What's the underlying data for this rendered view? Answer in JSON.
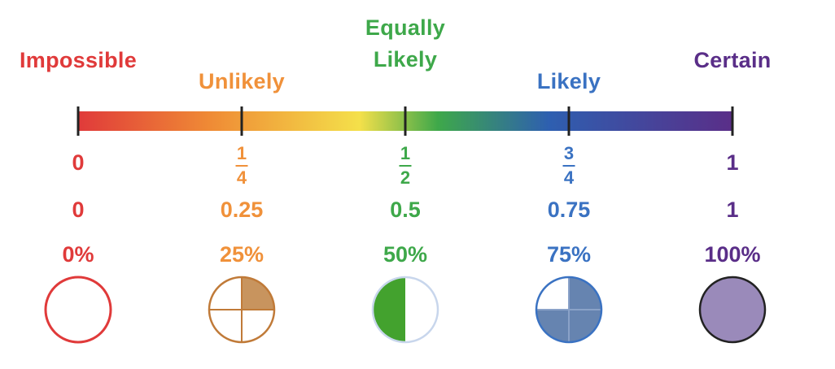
{
  "points": [
    {
      "value": 0,
      "label_lines": [
        "Impossible"
      ],
      "fraction": "0",
      "fraction_num": "",
      "fraction_den": "",
      "decimal": "0",
      "percent": "0%",
      "fill_fraction": 0,
      "color": "#e03a3a",
      "fill_color": "#ffffff"
    },
    {
      "value": 0.25,
      "label_lines": [
        "Unlikely"
      ],
      "fraction": "",
      "fraction_num": "1",
      "fraction_den": "4",
      "decimal": "0.25",
      "percent": "25%",
      "fill_fraction": 0.25,
      "color": "#f0913a",
      "fill_color": "#c8945e"
    },
    {
      "value": 0.5,
      "label_lines": [
        "Equally",
        "Likely"
      ],
      "fraction": "",
      "fraction_num": "1",
      "fraction_den": "2",
      "decimal": "0.5",
      "percent": "50%",
      "fill_fraction": 0.5,
      "color": "#3ea84a",
      "fill_color": "#43a22e"
    },
    {
      "value": 0.75,
      "label_lines": [
        "Likely"
      ],
      "fraction": "",
      "fraction_num": "3",
      "fraction_den": "4",
      "decimal": "0.75",
      "percent": "75%",
      "fill_fraction": 0.75,
      "color": "#3a72c2",
      "fill_color": "#6684b0"
    },
    {
      "value": 1,
      "label_lines": [
        "Certain"
      ],
      "fraction": "1",
      "fraction_num": "",
      "fraction_den": "",
      "decimal": "1",
      "percent": "100%",
      "fill_fraction": 1,
      "color": "#5a2e88",
      "fill_color": "#9a8aba"
    }
  ],
  "gradient_colors": [
    "#e03a3a",
    "#ef8a35",
    "#f4e04a",
    "#3ea84a",
    "#2e5fb0",
    "#5a2e88"
  ]
}
